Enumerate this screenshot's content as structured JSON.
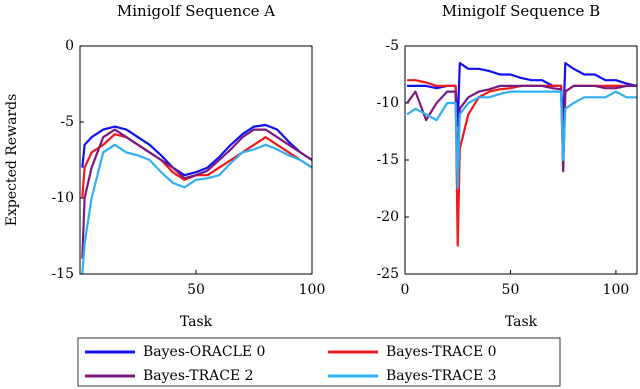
{
  "chart_data": [
    {
      "type": "line",
      "title": "Minigolf Sequence A",
      "xlabel": "Task",
      "ylabel": "Expected Rewards",
      "x": [
        1,
        2,
        5,
        10,
        15,
        20,
        25,
        30,
        35,
        40,
        45,
        50,
        55,
        60,
        65,
        70,
        75,
        80,
        85,
        90,
        95,
        100
      ],
      "xlim": [
        0,
        100
      ],
      "xticks": [
        50,
        100
      ],
      "ylim": [
        -15,
        0
      ],
      "yticks": [
        -15,
        -10,
        -5,
        0
      ],
      "series": [
        {
          "name": "Bayes-ORACLE 0",
          "color": "#1010f0",
          "values": [
            -8,
            -6.5,
            -6,
            -5.5,
            -5.3,
            -5.5,
            -6,
            -6.5,
            -7.2,
            -8,
            -8.5,
            -8.3,
            -8,
            -7.3,
            -6.5,
            -5.8,
            -5.3,
            -5.2,
            -5.5,
            -6.3,
            -7,
            -7.5
          ]
        },
        {
          "name": "Bayes-TRACE 0",
          "color": "#f01818",
          "values": [
            -10,
            -8,
            -7,
            -6.5,
            -5.8,
            -6,
            -6.5,
            -7,
            -7.5,
            -8.3,
            -8.8,
            -8.5,
            -8.5,
            -8,
            -7.5,
            -7,
            -6.5,
            -6,
            -6.5,
            -7,
            -7.5,
            -8
          ]
        },
        {
          "name": "Bayes-TRACE 2",
          "color": "#7a1a80",
          "values": [
            -14,
            -10,
            -8,
            -6,
            -5.5,
            -6,
            -6.5,
            -7,
            -7.5,
            -8,
            -8.7,
            -8.5,
            -8.2,
            -7.5,
            -6.8,
            -6,
            -5.5,
            -5.5,
            -6,
            -6.5,
            -7,
            -7.5
          ]
        },
        {
          "name": "Bayes-TRACE 3",
          "color": "#30b0f0",
          "values": [
            -15,
            -13,
            -10,
            -7,
            -6.5,
            -7,
            -7.2,
            -7.5,
            -8.3,
            -9,
            -9.3,
            -8.8,
            -8.7,
            -8.5,
            -7.7,
            -7,
            -6.8,
            -6.5,
            -6.8,
            -7.2,
            -7.5,
            -8
          ]
        }
      ]
    },
    {
      "type": "line",
      "title": "Minigolf Sequence B",
      "xlabel": "Task",
      "x": [
        1,
        5,
        10,
        15,
        20,
        24,
        25,
        26,
        30,
        35,
        40,
        45,
        50,
        55,
        60,
        65,
        70,
        74,
        75,
        76,
        80,
        85,
        90,
        95,
        100,
        105,
        110
      ],
      "xlim": [
        0,
        110
      ],
      "xticks": [
        0,
        50,
        100
      ],
      "ylim": [
        -25,
        -5
      ],
      "yticks": [
        -25,
        -20,
        -15,
        -10,
        -5
      ],
      "series": [
        {
          "color": "#1010f0",
          "values": [
            -8.5,
            -8.5,
            -8.5,
            -8.7,
            -8.5,
            -8.5,
            -12,
            -6.5,
            -7,
            -7,
            -7.2,
            -7.5,
            -7.5,
            -7.8,
            -8,
            -8,
            -8.5,
            -8.5,
            -12,
            -6.5,
            -7,
            -7.5,
            -7.5,
            -8,
            -8,
            -8.3,
            -8.5
          ]
        },
        {
          "color": "#f01818",
          "values": [
            -8,
            -8,
            -8.2,
            -8.5,
            -8.5,
            -8.5,
            -22.5,
            -14,
            -11,
            -9.5,
            -9,
            -8.8,
            -8.7,
            -8.5,
            -8.5,
            -8.5,
            -8.5,
            -8.5,
            -15,
            -9,
            -8.5,
            -8.5,
            -8.5,
            -8.5,
            -8.5,
            -8.5,
            -8.5
          ]
        },
        {
          "color": "#7a1a80",
          "values": [
            -10,
            -9,
            -11.5,
            -10,
            -9,
            -9,
            -16,
            -10.5,
            -9.5,
            -9,
            -8.8,
            -8.5,
            -8.5,
            -8.5,
            -8.5,
            -8.5,
            -8.7,
            -8.8,
            -16,
            -9,
            -8.5,
            -8.5,
            -8.5,
            -8.7,
            -8.7,
            -8.5,
            -8.5
          ]
        },
        {
          "color": "#30b0f0",
          "values": [
            -11,
            -10.5,
            -11,
            -11.5,
            -10,
            -10,
            -17.5,
            -11,
            -10,
            -9.5,
            -9.5,
            -9.2,
            -9,
            -9,
            -9,
            -9,
            -9,
            -9,
            -15,
            -10.5,
            -10,
            -9.5,
            -9.5,
            -9.5,
            -9,
            -9.5,
            -9.5
          ]
        }
      ]
    }
  ]
}
